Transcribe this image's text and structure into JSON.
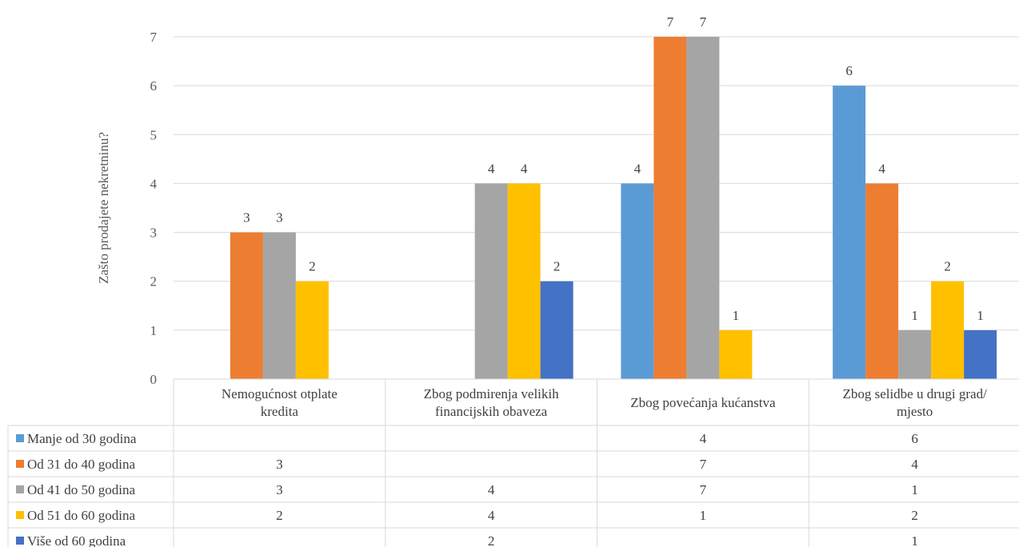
{
  "chart_data": {
    "type": "bar",
    "ylabel": "Zašto prodajete nekretninu?",
    "ylim": [
      0,
      7
    ],
    "yticks": [
      0,
      1,
      2,
      3,
      4,
      5,
      6,
      7
    ],
    "grid": "horizontal",
    "legend": "data-table-below",
    "categories": [
      [
        "Nemogućnost otplate",
        "kredita"
      ],
      [
        "Zbog podmirenja velikih",
        "financijskih obaveza"
      ],
      [
        "Zbog povećanja kućanstva"
      ],
      [
        "Zbog selidbe u drugi grad/",
        "mjesto"
      ]
    ],
    "series": [
      {
        "name": "Manje od 30 godina",
        "color": "#5B9BD5",
        "values": [
          null,
          null,
          4,
          6
        ]
      },
      {
        "name": "Od 31 do 40 godina",
        "color": "#ED7D31",
        "values": [
          3,
          null,
          7,
          4
        ]
      },
      {
        "name": "Od 41 do 50 godina",
        "color": "#A5A5A5",
        "values": [
          3,
          4,
          7,
          1
        ]
      },
      {
        "name": "Od 51 do 60 godina",
        "color": "#FFC000",
        "values": [
          2,
          4,
          1,
          2
        ]
      },
      {
        "name": "Više od 60 godina",
        "color": "#4472C4",
        "values": [
          null,
          2,
          null,
          1
        ]
      }
    ]
  }
}
